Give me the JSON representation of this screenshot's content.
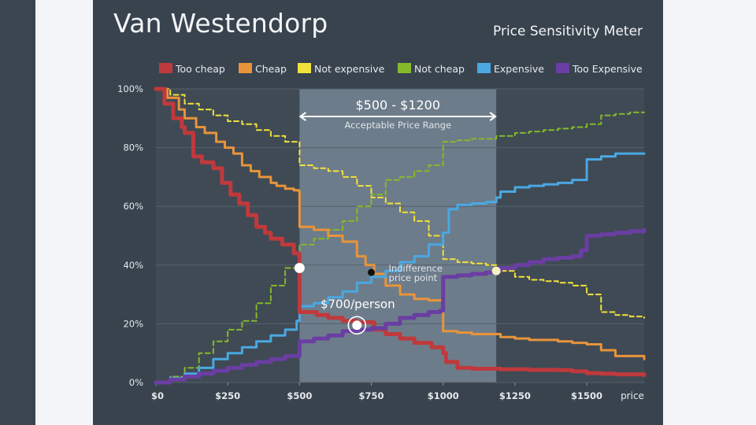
{
  "chart_data": {
    "type": "line",
    "title": "Van Westendorp",
    "subtitle": "Price Sensitivity Meter",
    "xlabel": "price",
    "ylabel": "",
    "xlim": [
      0,
      1700
    ],
    "ylim": [
      0,
      100
    ],
    "x_ticks": [
      {
        "value": 0,
        "label": "$0"
      },
      {
        "value": 250,
        "label": "$250"
      },
      {
        "value": 500,
        "label": "$500"
      },
      {
        "value": 750,
        "label": "$750"
      },
      {
        "value": 1000,
        "label": "$1000"
      },
      {
        "value": 1250,
        "label": "$1250"
      },
      {
        "value": 1500,
        "label": "$1500"
      }
    ],
    "y_ticks": [
      {
        "value": 0,
        "label": "0%"
      },
      {
        "value": 20,
        "label": "20%"
      },
      {
        "value": 40,
        "label": "40%"
      },
      {
        "value": 60,
        "label": "60%"
      },
      {
        "value": 80,
        "label": "80%"
      },
      {
        "value": 100,
        "label": "100%"
      }
    ],
    "grid": true,
    "legend_position": "top",
    "acceptable_range": {
      "x0": 500,
      "x1": 1185,
      "label": "$500 - $1200",
      "caption": "Acceptable Price Range"
    },
    "series": [
      {
        "name": "Too cheap",
        "color": "#c0393c",
        "style": "solid",
        "width": 5,
        "x": [
          0,
          30,
          60,
          90,
          100,
          130,
          160,
          200,
          230,
          260,
          290,
          320,
          350,
          380,
          400,
          440,
          480,
          498,
          500,
          560,
          600,
          650,
          700,
          760,
          800,
          850,
          900,
          960,
          1000,
          1010,
          1050,
          1100,
          1200,
          1300,
          1400,
          1450,
          1500,
          1550,
          1600,
          1700
        ],
        "y": [
          100,
          95,
          90,
          87,
          85,
          77,
          75,
          73,
          68,
          64,
          61,
          57,
          53,
          51,
          49,
          47,
          44,
          43.5,
          24,
          23,
          22,
          21,
          20.5,
          18,
          16.5,
          15,
          13.5,
          12,
          10,
          7,
          5,
          4.7,
          4.5,
          4.3,
          4.2,
          3.8,
          3.2,
          3,
          2.8,
          2.5
        ]
      },
      {
        "name": "Cheap",
        "color": "#e8943a",
        "style": "solid",
        "width": 3,
        "x": [
          0,
          40,
          80,
          100,
          140,
          170,
          210,
          240,
          270,
          300,
          330,
          360,
          400,
          420,
          450,
          480,
          498,
          500,
          550,
          600,
          650,
          700,
          730,
          760,
          800,
          850,
          900,
          950,
          1000,
          1050,
          1100,
          1200,
          1250,
          1300,
          1400,
          1450,
          1500,
          1550,
          1600,
          1700
        ],
        "y": [
          100,
          97,
          93,
          90,
          87,
          85,
          82,
          80,
          78,
          74,
          72,
          70,
          68,
          67,
          66,
          65.5,
          65,
          53,
          52,
          50,
          48,
          43,
          40,
          37,
          33,
          30,
          28.5,
          28,
          17.5,
          17,
          16.5,
          15.5,
          15,
          14.5,
          14,
          13.5,
          13,
          11,
          9,
          8
        ]
      },
      {
        "name": "Not expensive",
        "color": "#f2e13a",
        "style": "dashed",
        "width": 2,
        "x": [
          0,
          50,
          100,
          150,
          200,
          250,
          300,
          350,
          400,
          450,
          500,
          550,
          600,
          650,
          700,
          750,
          800,
          850,
          900,
          950,
          1000,
          1050,
          1100,
          1150,
          1185,
          1250,
          1300,
          1350,
          1400,
          1450,
          1500,
          1550,
          1600,
          1650,
          1700
        ],
        "y": [
          100,
          98,
          95,
          93,
          91,
          89,
          88,
          86,
          84,
          82,
          74,
          73,
          72,
          70,
          67,
          63,
          61,
          58,
          55,
          50,
          42,
          41,
          40.5,
          40,
          38,
          36,
          35,
          34.5,
          34,
          33,
          30,
          24,
          23,
          22.5,
          22
        ]
      },
      {
        "name": "Not cheap",
        "color": "#86b92a",
        "style": "dashed",
        "width": 2,
        "x": [
          0,
          50,
          100,
          150,
          200,
          250,
          300,
          350,
          400,
          450,
          500,
          550,
          600,
          650,
          700,
          750,
          800,
          850,
          900,
          950,
          1000,
          1050,
          1100,
          1150,
          1185,
          1250,
          1300,
          1350,
          1400,
          1450,
          1500,
          1550,
          1600,
          1650,
          1700
        ],
        "y": [
          0,
          2,
          5,
          10,
          14,
          18,
          21,
          27,
          33,
          39,
          47,
          49,
          52,
          55,
          60,
          64,
          69,
          70,
          72,
          74,
          82,
          82.5,
          83,
          83,
          84,
          85,
          85.5,
          86,
          86.5,
          87,
          88,
          91,
          91.5,
          92,
          92
        ]
      },
      {
        "name": "Expensive",
        "color": "#4aa8e2",
        "style": "solid",
        "width": 3,
        "x": [
          0,
          50,
          100,
          150,
          200,
          250,
          300,
          350,
          400,
          450,
          490,
          500,
          550,
          600,
          650,
          700,
          750,
          800,
          850,
          900,
          950,
          1000,
          1020,
          1050,
          1100,
          1150,
          1185,
          1200,
          1250,
          1300,
          1350,
          1400,
          1450,
          1500,
          1550,
          1600,
          1650,
          1700
        ],
        "y": [
          0,
          1.5,
          3,
          5,
          8,
          10,
          12,
          14,
          16,
          18,
          21,
          26,
          27,
          29,
          31,
          34,
          36,
          38,
          41,
          43,
          47,
          51,
          59,
          60.5,
          61,
          61.5,
          63,
          65,
          66.5,
          67,
          67.5,
          68,
          69,
          76,
          77,
          78,
          78,
          78
        ]
      },
      {
        "name": "Too Expensive",
        "color": "#6a3ea2",
        "style": "solid",
        "width": 5,
        "x": [
          0,
          50,
          100,
          150,
          200,
          250,
          300,
          350,
          400,
          450,
          500,
          550,
          600,
          650,
          700,
          750,
          800,
          850,
          900,
          950,
          990,
          1000,
          1050,
          1100,
          1150,
          1185,
          1200,
          1250,
          1300,
          1350,
          1400,
          1450,
          1480,
          1500,
          1550,
          1600,
          1650,
          1700
        ],
        "y": [
          0,
          1,
          2,
          3,
          4,
          5,
          6,
          7,
          8,
          9,
          14,
          15,
          16,
          17.5,
          18,
          18.5,
          20,
          22,
          23,
          24,
          24.5,
          36,
          36.5,
          37,
          37.5,
          38,
          39,
          40,
          41,
          42,
          42.5,
          43,
          45,
          50,
          50.5,
          51,
          51.5,
          52
        ]
      }
    ],
    "annotations": [
      {
        "type": "dot",
        "x": 500,
        "y": 39,
        "color": "#ffffff",
        "size": "large"
      },
      {
        "type": "dot",
        "x": 750,
        "y": 37.5,
        "color": "#111111",
        "size": "small",
        "label": "Indifference price point"
      },
      {
        "type": "dot",
        "x": 1185,
        "y": 38,
        "color": "#f5f0c0",
        "size": "medium"
      },
      {
        "type": "target",
        "x": 700,
        "y": 19.5,
        "color": "#ffffff",
        "label": "$700/person"
      }
    ]
  }
}
